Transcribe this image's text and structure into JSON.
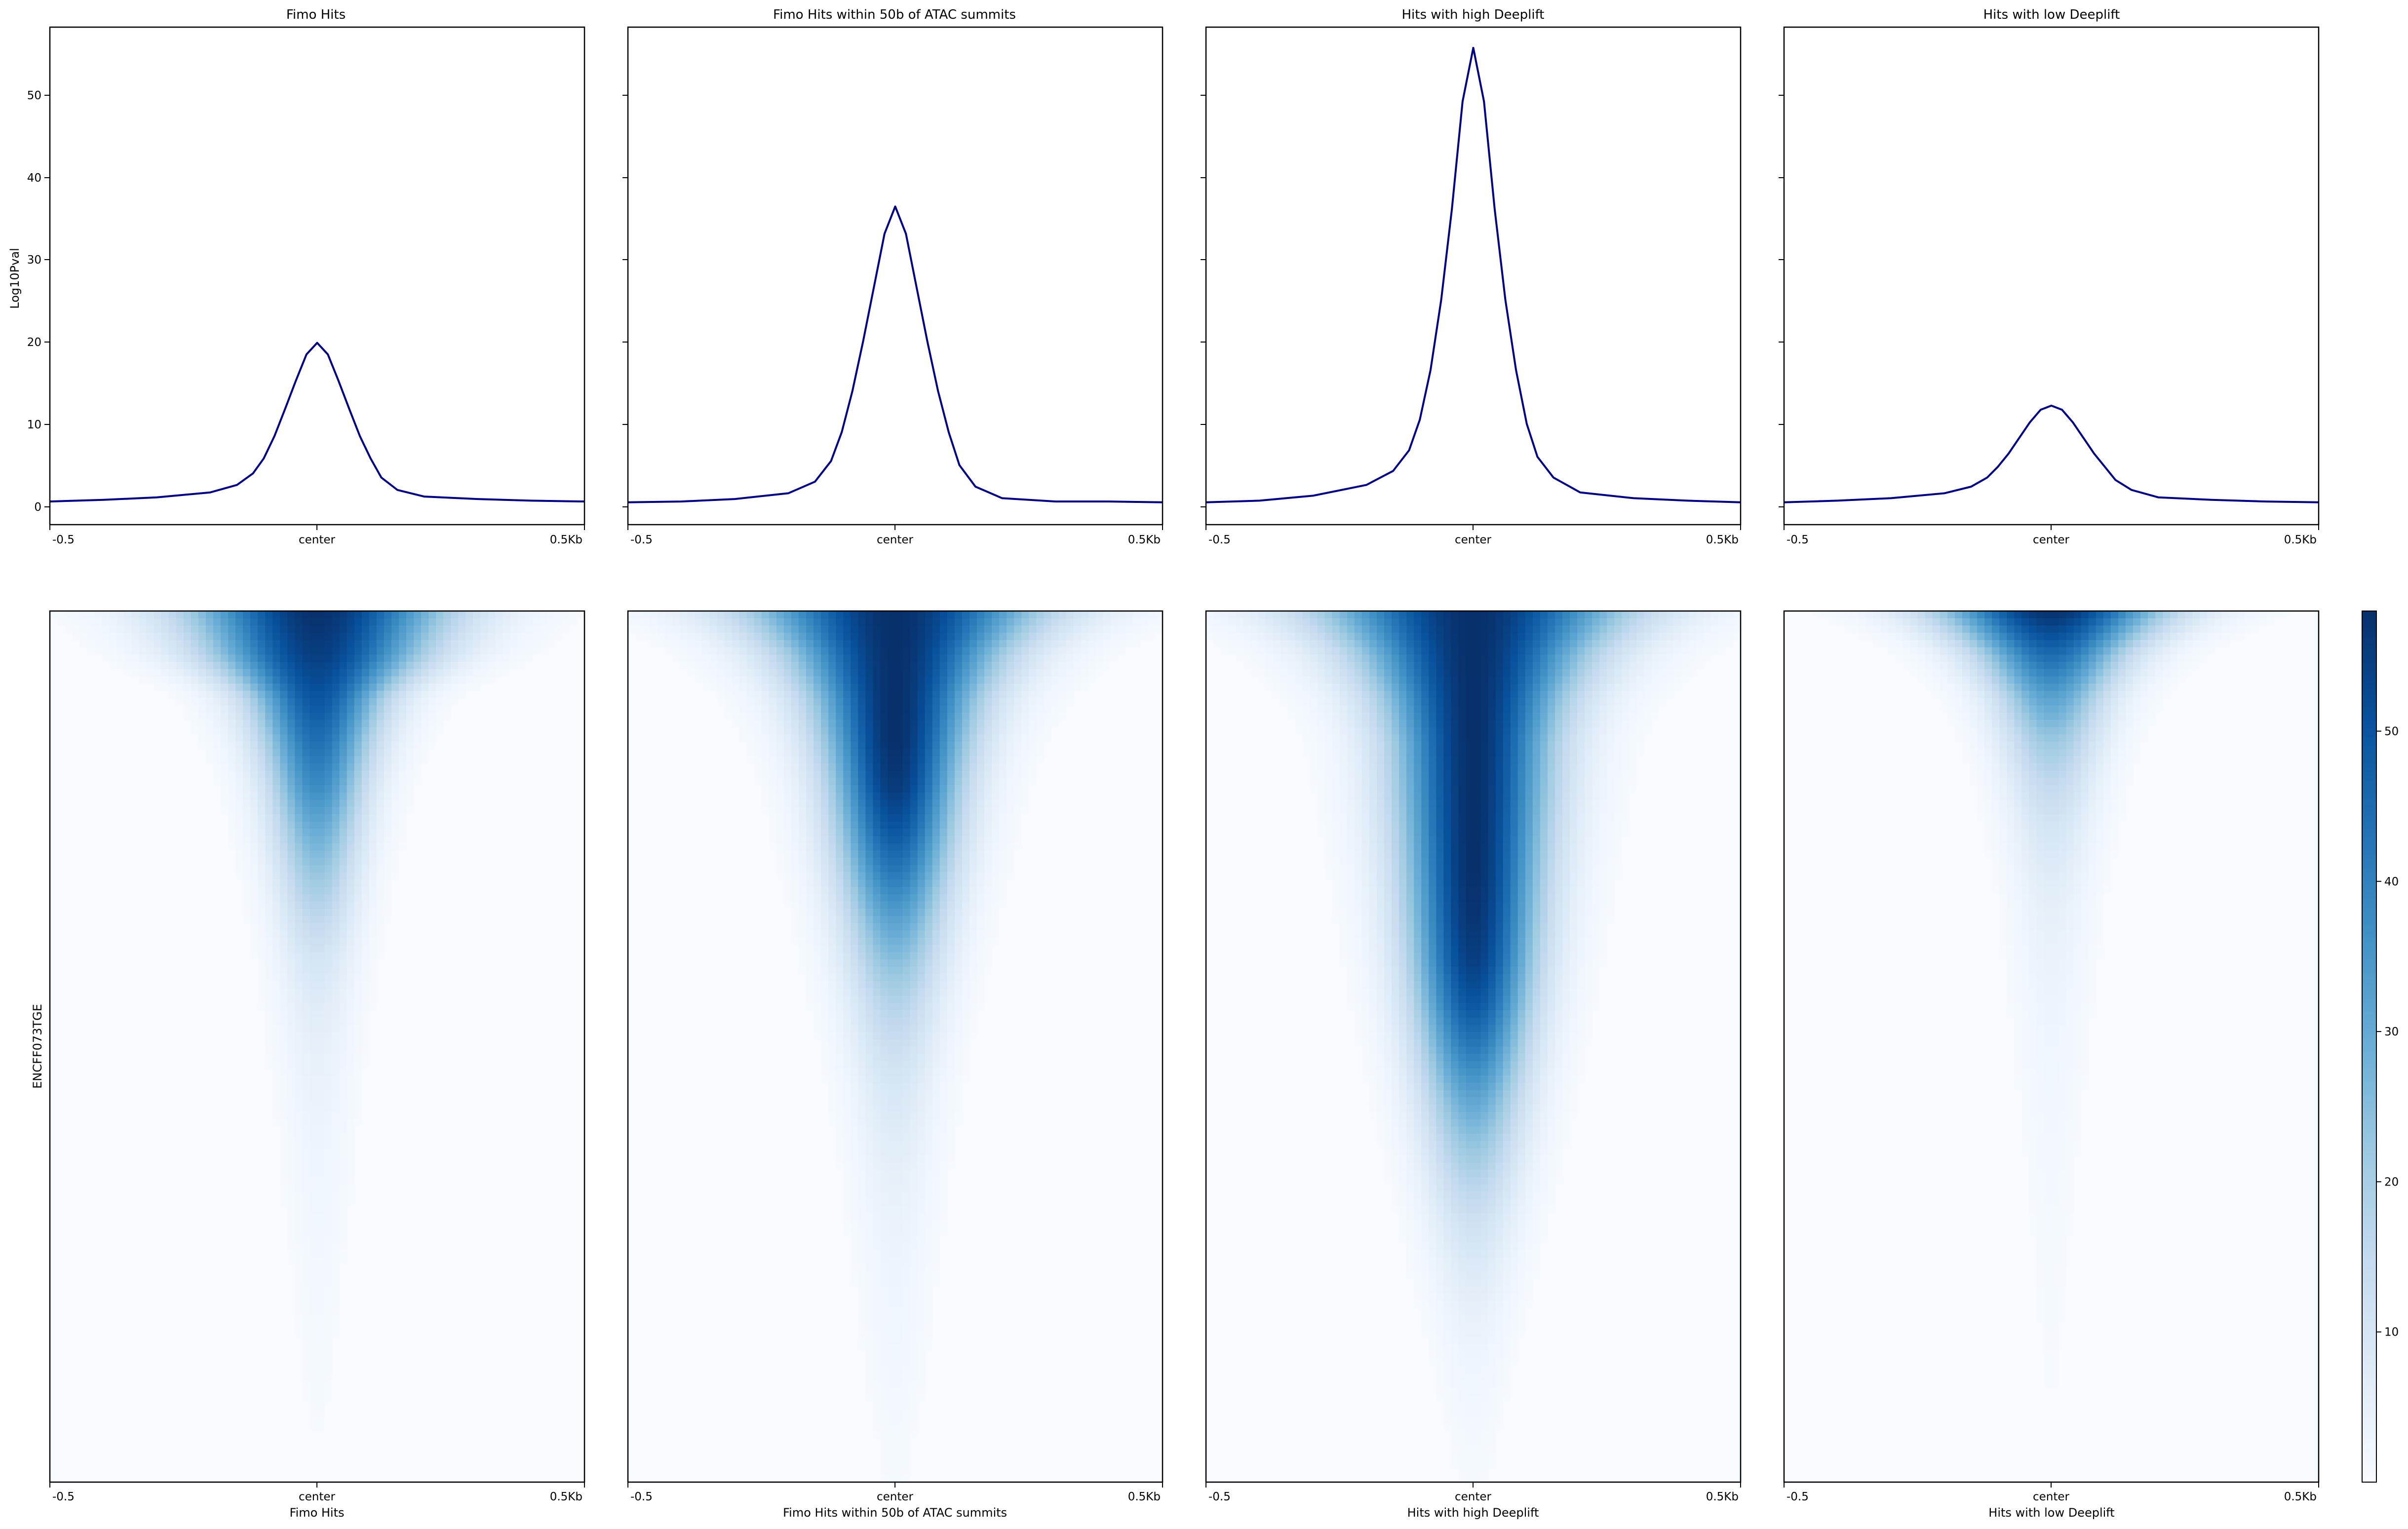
{
  "colormap": {
    "name": "Blues",
    "stops": [
      "#f7fbff",
      "#deebf7",
      "#c6dbef",
      "#9ecae1",
      "#6baed6",
      "#4292c6",
      "#2171b5",
      "#08519c",
      "#08306b"
    ],
    "vmin": 0,
    "vmax": 58,
    "ticks": [
      10,
      20,
      30,
      40,
      50
    ]
  },
  "profile_color": "#000080",
  "profile_ylim": [
    -2.2,
    58
  ],
  "profile_yticks": [
    0,
    10,
    20,
    30,
    40,
    50
  ],
  "profile_ylabel": "Log10Pval",
  "heatmap_ylabel": "ENCFF073TGE",
  "xticks": [
    "-0.5",
    "center",
    "0.5Kb"
  ],
  "chart_data": [
    {
      "type": "line",
      "title": "Fimo Hits",
      "x": [
        -500,
        -400,
        -300,
        -200,
        -150,
        -120,
        -100,
        -80,
        -60,
        -40,
        -20,
        0,
        20,
        40,
        60,
        80,
        100,
        120,
        150,
        200,
        300,
        400,
        500
      ],
      "y": [
        0.6,
        0.8,
        1.1,
        1.7,
        2.6,
        4.0,
        5.8,
        8.5,
        11.8,
        15.2,
        18.4,
        19.8,
        18.4,
        15.2,
        11.8,
        8.5,
        5.8,
        3.5,
        2.0,
        1.2,
        0.9,
        0.7,
        0.6
      ]
    },
    {
      "type": "line",
      "title": "Fimo Hits within 50b of ATAC summits",
      "x": [
        -500,
        -400,
        -300,
        -200,
        -150,
        -120,
        -100,
        -80,
        -60,
        -40,
        -20,
        0,
        20,
        40,
        60,
        80,
        100,
        120,
        150,
        200,
        300,
        400,
        500
      ],
      "y": [
        0.5,
        0.6,
        0.9,
        1.6,
        3.0,
        5.5,
        9.0,
        14.0,
        20.0,
        26.5,
        33.0,
        36.3,
        33.0,
        26.5,
        20.0,
        14.0,
        9.0,
        5.0,
        2.4,
        1.0,
        0.6,
        0.6,
        0.5
      ]
    },
    {
      "type": "line",
      "title": "Hits with high Deeplift",
      "x": [
        -500,
        -400,
        -300,
        -200,
        -150,
        -120,
        -100,
        -80,
        -60,
        -40,
        -20,
        0,
        20,
        40,
        60,
        80,
        100,
        120,
        150,
        200,
        300,
        400,
        500
      ],
      "y": [
        0.5,
        0.7,
        1.3,
        2.6,
        4.3,
        6.8,
        10.5,
        16.5,
        25.0,
        36.0,
        49.0,
        55.5,
        49.0,
        36.0,
        25.0,
        16.5,
        10.0,
        6.0,
        3.5,
        1.7,
        1.0,
        0.7,
        0.5
      ]
    },
    {
      "type": "line",
      "title": "Hits with low Deeplift",
      "x": [
        -500,
        -400,
        -300,
        -200,
        -150,
        -120,
        -100,
        -80,
        -60,
        -40,
        -20,
        0,
        20,
        40,
        60,
        80,
        100,
        120,
        150,
        200,
        300,
        400,
        500
      ],
      "y": [
        0.5,
        0.7,
        1.0,
        1.6,
        2.4,
        3.5,
        4.8,
        6.4,
        8.3,
        10.2,
        11.7,
        12.2,
        11.7,
        10.2,
        8.3,
        6.4,
        4.8,
        3.2,
        2.0,
        1.1,
        0.8,
        0.6,
        0.5
      ]
    },
    {
      "type": "heatmap",
      "xlabel": "Fimo Hits",
      "x_extent": [
        -500,
        500
      ],
      "row_percentile": [
        0,
        5,
        10,
        15,
        20,
        25,
        30,
        35,
        40,
        45,
        50,
        55,
        60,
        65,
        70,
        75,
        80,
        85,
        90,
        95,
        100
      ],
      "peak_value": [
        58,
        55,
        50,
        44,
        38,
        30,
        23,
        16,
        10,
        7,
        5,
        4,
        3,
        2.5,
        2,
        1.5,
        1.2,
        1,
        0.8,
        0.6,
        0.5
      ],
      "half_width_bp": [
        170,
        140,
        90,
        75,
        65,
        60,
        55,
        52,
        50,
        48,
        46,
        44,
        42,
        40,
        38,
        36,
        34,
        32,
        30,
        28,
        26
      ]
    },
    {
      "type": "heatmap",
      "xlabel": "Fimo Hits within 50b of ATAC summits",
      "x_extent": [
        -500,
        500
      ],
      "row_percentile": [
        0,
        5,
        10,
        15,
        20,
        25,
        30,
        35,
        40,
        45,
        50,
        55,
        60,
        65,
        70,
        75,
        80,
        85,
        90,
        95,
        100
      ],
      "peak_value": [
        58,
        58,
        58,
        58,
        56,
        50,
        42,
        33,
        25,
        18,
        13,
        9,
        7,
        5,
        4,
        3,
        2.5,
        2,
        1.5,
        1,
        0.8
      ],
      "half_width_bp": [
        190,
        140,
        110,
        95,
        85,
        80,
        75,
        70,
        66,
        62,
        58,
        55,
        52,
        50,
        48,
        45,
        42,
        40,
        38,
        35,
        32
      ]
    },
    {
      "type": "heatmap",
      "xlabel": "Hits with high Deeplift",
      "x_extent": [
        -500,
        500
      ],
      "row_percentile": [
        0,
        5,
        10,
        15,
        20,
        25,
        30,
        35,
        40,
        45,
        50,
        55,
        60,
        65,
        70,
        75,
        80,
        85,
        90,
        95,
        100
      ],
      "peak_value": [
        58,
        58,
        58,
        58,
        58,
        58,
        58,
        57,
        55,
        50,
        42,
        33,
        25,
        18,
        12,
        8,
        5,
        3,
        2,
        1.2,
        0.8
      ],
      "half_width_bp": [
        200,
        150,
        120,
        105,
        100,
        95,
        90,
        86,
        82,
        78,
        74,
        70,
        66,
        62,
        58,
        54,
        50,
        46,
        42,
        38,
        34
      ]
    },
    {
      "type": "heatmap",
      "xlabel": "Hits with low Deeplift",
      "x_extent": [
        -500,
        500
      ],
      "row_percentile": [
        0,
        5,
        10,
        15,
        20,
        25,
        30,
        35,
        40,
        45,
        50,
        55,
        60,
        65,
        70,
        75,
        80,
        85,
        90,
        95,
        100
      ],
      "peak_value": [
        58,
        45,
        32,
        22,
        15,
        10,
        7,
        5,
        4,
        3,
        2.5,
        2,
        1.6,
        1.3,
        1.1,
        0.9,
        0.8,
        0.7,
        0.6,
        0.5,
        0.4
      ],
      "half_width_bp": [
        150,
        100,
        75,
        65,
        58,
        54,
        50,
        48,
        46,
        44,
        42,
        40,
        38,
        36,
        34,
        32,
        30,
        28,
        26,
        24,
        22
      ]
    }
  ]
}
